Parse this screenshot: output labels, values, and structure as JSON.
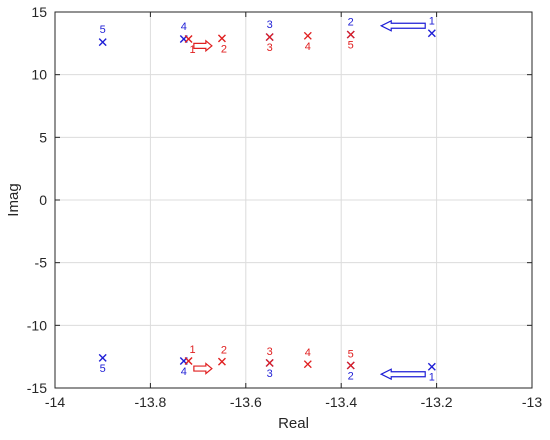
{
  "chart_data": {
    "type": "scatter",
    "xlabel": "Real",
    "ylabel": "Imag",
    "xlim": [
      -14,
      -13
    ],
    "ylim": [
      -15,
      15
    ],
    "xticks": [
      -14,
      -13.8,
      -13.6,
      -13.4,
      -13.2,
      -13
    ],
    "xtick_labels": [
      "-14",
      "-13.8",
      "-13.6",
      "-13.4",
      "-13.2",
      "-13"
    ],
    "yticks": [
      15,
      10,
      5,
      0,
      -5,
      -10,
      -15
    ],
    "ytick_labels": [
      "15",
      "10",
      "5",
      "0",
      "-5",
      "-10",
      "-15"
    ],
    "grid": true,
    "marker": "x",
    "series": [
      {
        "color": "#1f1fd6",
        "points": [
          {
            "x": -13.21,
            "y": 13.3,
            "label": "1"
          },
          {
            "x": -13.38,
            "y": 13.2,
            "label": "2"
          },
          {
            "x": -13.55,
            "y": 13.0,
            "label": "3"
          },
          {
            "x": -13.73,
            "y": 12.85,
            "label": "4"
          },
          {
            "x": -13.9,
            "y": 12.6,
            "label": "5"
          },
          {
            "x": -13.21,
            "y": -13.3,
            "label": "1"
          },
          {
            "x": -13.38,
            "y": -13.2,
            "label": "2"
          },
          {
            "x": -13.55,
            "y": -13.0,
            "label": "3"
          },
          {
            "x": -13.73,
            "y": -12.85,
            "label": "4"
          },
          {
            "x": -13.9,
            "y": -12.6,
            "label": "5"
          }
        ]
      },
      {
        "color": "#e02020",
        "points": [
          {
            "x": -13.72,
            "y": 12.85,
            "label": "1"
          },
          {
            "x": -13.65,
            "y": 12.9,
            "label": "2"
          },
          {
            "x": -13.55,
            "y": 13.0,
            "label": "3"
          },
          {
            "x": -13.47,
            "y": 13.1,
            "label": "4"
          },
          {
            "x": -13.38,
            "y": 13.2,
            "label": "5"
          },
          {
            "x": -13.72,
            "y": -12.85,
            "label": "1"
          },
          {
            "x": -13.65,
            "y": -12.9,
            "label": "2"
          },
          {
            "x": -13.55,
            "y": -13.0,
            "label": "3"
          },
          {
            "x": -13.47,
            "y": -13.1,
            "label": "4"
          },
          {
            "x": -13.38,
            "y": -13.2,
            "label": "5"
          }
        ]
      }
    ],
    "annotations": [
      {
        "type": "arrow",
        "color": "#e02020",
        "direction": "right",
        "x": -13.69,
        "y": 12.3
      },
      {
        "type": "arrow",
        "color": "#e02020",
        "direction": "right",
        "x": -13.69,
        "y": -13.45
      },
      {
        "type": "arrow",
        "color": "#1f1fd6",
        "direction": "left",
        "x": -13.27,
        "y": 13.9
      },
      {
        "type": "arrow",
        "color": "#1f1fd6",
        "direction": "left",
        "x": -13.27,
        "y": -13.9
      }
    ]
  }
}
